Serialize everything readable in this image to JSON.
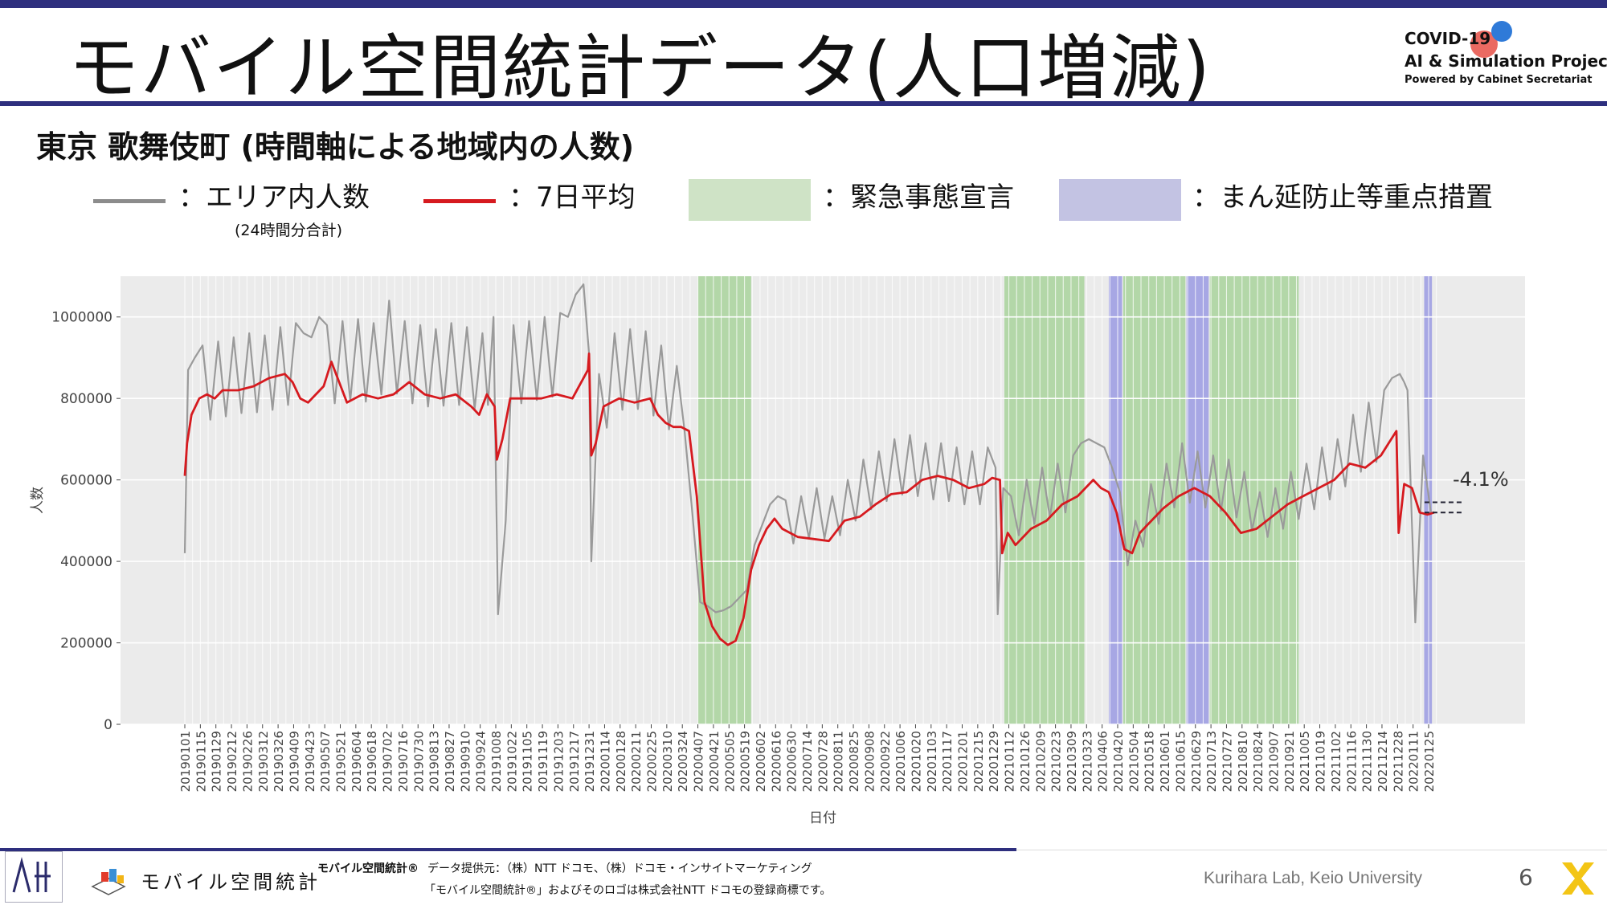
{
  "header": {
    "title": "モバイル空間統計データ(人口増減)",
    "logo_line1": "COVID-19",
    "logo_line2": "AI & Simulation Project",
    "logo_line3": "Powered by Cabinet Secretariat"
  },
  "subtitle": "東京 歌舞伎町 (時間軸による地域内の人数)",
  "legend": {
    "area_count_label": "：エリア内人数",
    "area_count_note": "(24時間分合計)",
    "avg_label": "：7日平均",
    "emergency_label": "：緊急事態宣言",
    "priority_label": "：まん延防止等重点措置"
  },
  "colors": {
    "raw": "#9a9a9a",
    "avg": "#d61a1f",
    "emergency": "#a9d39c",
    "priority": "#9b9be3",
    "panel": "#ebebeb",
    "accent": "#2e2f7e"
  },
  "chart_data": {
    "type": "line",
    "xlabel": "日付",
    "ylabel": "人数",
    "ylim": [
      0,
      1100000
    ],
    "yticks": [
      0,
      200000,
      400000,
      600000,
      800000,
      1000000
    ],
    "ytick_labels": [
      "0",
      "200000",
      "400000",
      "600000",
      "800000",
      "1000000"
    ],
    "xticks": [
      "20190101",
      "20190115",
      "20190129",
      "20190212",
      "20190226",
      "20190312",
      "20190326",
      "20190409",
      "20190423",
      "20190507",
      "20190521",
      "20190604",
      "20190618",
      "20190702",
      "20190716",
      "20190730",
      "20190813",
      "20190827",
      "20190910",
      "20190924",
      "20191008",
      "20191022",
      "20191105",
      "20191119",
      "20191203",
      "20191217",
      "20191231",
      "20200114",
      "20200128",
      "20200211",
      "20200225",
      "20200310",
      "20200324",
      "20200407",
      "20200421",
      "20200505",
      "20200519",
      "20200602",
      "20200616",
      "20200630",
      "20200714",
      "20200728",
      "20200811",
      "20200825",
      "20200908",
      "20200922",
      "20201006",
      "20201020",
      "20201103",
      "20201117",
      "20201201",
      "20201215",
      "20201229",
      "20210112",
      "20210126",
      "20210209",
      "20210223",
      "20210309",
      "20210323",
      "20210406",
      "20210420",
      "20210504",
      "20210518",
      "20210601",
      "20210615",
      "20210629",
      "20210713",
      "20210727",
      "20210810",
      "20210824",
      "20210907",
      "20210921",
      "20211005",
      "20211019",
      "20211102",
      "20211116",
      "20211130",
      "20211214",
      "20211228",
      "20220111",
      "20220125"
    ],
    "emergency_periods": [
      [
        "20200407",
        "20200525"
      ],
      [
        "20210108",
        "20210321"
      ],
      [
        "20210425",
        "20210620"
      ],
      [
        "20210712",
        "20210930"
      ]
    ],
    "priority_periods": [
      [
        "20210412",
        "20210424"
      ],
      [
        "20210621",
        "20210711"
      ],
      [
        "20220121",
        "20220128"
      ]
    ],
    "series": [
      {
        "name": "エリア内人数",
        "x": [
          "20190101",
          "20190104",
          "20190110",
          "20190117",
          "20190131",
          "20190214",
          "20190228",
          "20190314",
          "20190328",
          "20190411",
          "20190418",
          "20190425",
          "20190502",
          "20190509",
          "20190523",
          "20190606",
          "20190620",
          "20190704",
          "20190718",
          "20190801",
          "20190815",
          "20190829",
          "20190912",
          "20190926",
          "20191006",
          "20191010",
          "20191024",
          "20191107",
          "20191121",
          "20191205",
          "20191212",
          "20191219",
          "20191226",
          "20191231",
          "20200102",
          "20200109",
          "20200123",
          "20200206",
          "20200220",
          "20200305",
          "20200319",
          "20200326",
          "20200402",
          "20200409",
          "20200416",
          "20200423",
          "20200430",
          "20200507",
          "20200514",
          "20200521",
          "20200528",
          "20200604",
          "20200611",
          "20200618",
          "20200625",
          "20200709",
          "20200723",
          "20200806",
          "20200820",
          "20200903",
          "20200917",
          "20201001",
          "20201015",
          "20201029",
          "20201112",
          "20201126",
          "20201210",
          "20201224",
          "20201231",
          "20210102",
          "20210107",
          "20210114",
          "20210128",
          "20210211",
          "20210225",
          "20210311",
          "20210318",
          "20210325",
          "20210401",
          "20210408",
          "20210415",
          "20210422",
          "20210429",
          "20210506",
          "20210520",
          "20210603",
          "20210617",
          "20210701",
          "20210715",
          "20210729",
          "20210812",
          "20210826",
          "20210909",
          "20210923",
          "20211007",
          "20211021",
          "20211104",
          "20211118",
          "20211202",
          "20211216",
          "20211223",
          "20211230",
          "20220103",
          "20220106",
          "20220113",
          "20220120",
          "20220127"
        ],
        "y": [
          420000,
          870000,
          900000,
          930000,
          940000,
          950000,
          960000,
          955000,
          975000,
          985000,
          960000,
          950000,
          1000000,
          980000,
          990000,
          995000,
          985000,
          1040000,
          990000,
          980000,
          970000,
          985000,
          975000,
          960000,
          1000000,
          270000,
          980000,
          990000,
          1000000,
          1010000,
          1000000,
          1055000,
          1080000,
          910000,
          400000,
          860000,
          960000,
          970000,
          965000,
          930000,
          880000,
          720000,
          520000,
          300000,
          290000,
          275000,
          280000,
          290000,
          310000,
          330000,
          440000,
          490000,
          540000,
          560000,
          550000,
          560000,
          580000,
          560000,
          600000,
          650000,
          670000,
          700000,
          710000,
          690000,
          690000,
          680000,
          670000,
          680000,
          630000,
          270000,
          580000,
          560000,
          600000,
          630000,
          640000,
          660000,
          690000,
          700000,
          690000,
          680000,
          630000,
          570000,
          390000,
          500000,
          590000,
          640000,
          690000,
          670000,
          660000,
          650000,
          620000,
          570000,
          580000,
          620000,
          640000,
          680000,
          700000,
          760000,
          790000,
          820000,
          850000,
          860000,
          840000,
          820000,
          250000,
          660000,
          520000
        ]
      },
      {
        "name": "7日平均",
        "x": [
          "20190101",
          "20190103",
          "20190107",
          "20190114",
          "20190121",
          "20190128",
          "20190204",
          "20190218",
          "20190304",
          "20190318",
          "20190401",
          "20190408",
          "20190415",
          "20190422",
          "20190429",
          "20190506",
          "20190513",
          "20190527",
          "20190610",
          "20190624",
          "20190708",
          "20190722",
          "20190805",
          "20190819",
          "20190902",
          "20190916",
          "20190923",
          "20190930",
          "20191007",
          "20191009",
          "20191014",
          "20191021",
          "20191104",
          "20191118",
          "20191202",
          "20191216",
          "20191230",
          "20191231",
          "20200102",
          "20200106",
          "20200113",
          "20200127",
          "20200210",
          "20200224",
          "20200302",
          "20200309",
          "20200316",
          "20200323",
          "20200330",
          "20200406",
          "20200413",
          "20200420",
          "20200427",
          "20200504",
          "20200511",
          "20200518",
          "20200525",
          "20200601",
          "20200608",
          "20200615",
          "20200622",
          "20200629",
          "20200706",
          "20200720",
          "20200803",
          "20200817",
          "20200831",
          "20200914",
          "20200928",
          "20201012",
          "20201026",
          "20201109",
          "20201123",
          "20201207",
          "20201221",
          "20201228",
          "20210104",
          "20210106",
          "20210111",
          "20210118",
          "20210201",
          "20210215",
          "20210301",
          "20210315",
          "20210329",
          "20210405",
          "20210412",
          "20210419",
          "20210426",
          "20210503",
          "20210510",
          "20210517",
          "20210531",
          "20210614",
          "20210628",
          "20210712",
          "20210726",
          "20210809",
          "20210823",
          "20210906",
          "20210920",
          "20211004",
          "20211018",
          "20211101",
          "20211115",
          "20211129",
          "20211213",
          "20211220",
          "20211227",
          "20211229",
          "20220103",
          "20220110",
          "20220117",
          "20220124",
          "20220130"
        ],
        "y": [
          610000,
          690000,
          760000,
          800000,
          810000,
          800000,
          820000,
          820000,
          830000,
          850000,
          860000,
          840000,
          800000,
          790000,
          810000,
          830000,
          890000,
          790000,
          810000,
          800000,
          810000,
          840000,
          810000,
          800000,
          810000,
          780000,
          760000,
          810000,
          780000,
          650000,
          700000,
          800000,
          800000,
          800000,
          810000,
          800000,
          870000,
          910000,
          660000,
          690000,
          780000,
          800000,
          790000,
          800000,
          760000,
          740000,
          730000,
          730000,
          720000,
          560000,
          300000,
          240000,
          210000,
          195000,
          205000,
          260000,
          380000,
          440000,
          480000,
          505000,
          480000,
          470000,
          460000,
          455000,
          450000,
          500000,
          510000,
          540000,
          565000,
          570000,
          600000,
          610000,
          600000,
          580000,
          590000,
          605000,
          600000,
          420000,
          470000,
          440000,
          480000,
          500000,
          540000,
          560000,
          600000,
          580000,
          570000,
          520000,
          430000,
          420000,
          470000,
          490000,
          530000,
          560000,
          580000,
          560000,
          520000,
          470000,
          480000,
          510000,
          540000,
          560000,
          580000,
          600000,
          640000,
          630000,
          660000,
          690000,
          720000,
          470000,
          590000,
          580000,
          520000,
          515000,
          520000
        ]
      }
    ],
    "annotation": "-4.1%"
  },
  "footer": {
    "mobile_logo_text": "モバイル空間統計",
    "brand": "モバイル空間統計®",
    "provider": "データ提供元：（株）NTT ドコモ、（株）ドコモ・インサイトマーケティング",
    "trademark": "「モバイル空間統計®」およびそのロゴは株式会社NTT ドコモの登録商標です。",
    "lab": "Kurihara Lab, Keio University",
    "page_number": "6"
  }
}
